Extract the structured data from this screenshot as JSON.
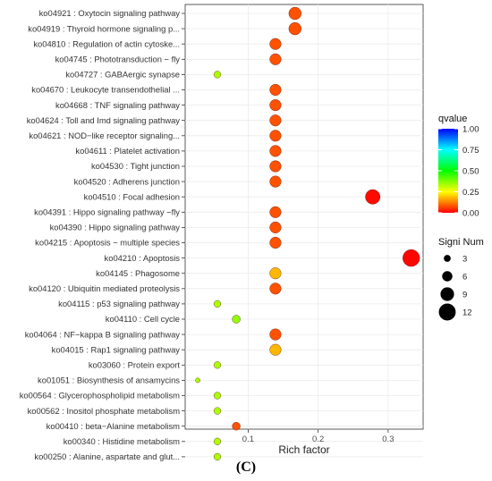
{
  "panel_label": "(C)",
  "chart_data": {
    "type": "scatter",
    "xlabel": "Rich factor",
    "ylabel": "",
    "xlim": [
      0.01,
      0.35
    ],
    "xticks": [
      0.1,
      0.2,
      0.3
    ],
    "tick_labels": [
      "0.1",
      "0.2",
      "0.3"
    ],
    "grid": true,
    "categories": [
      "ko04921 : Oxytocin signaling pathway",
      "ko04919 : Thyroid hormone signaling p...",
      "ko04810 : Regulation of actin cytoske...",
      "ko04745 : Phototransduction − fly",
      "ko04727 : GABAergic synapse",
      "ko04670 : Leukocyte transendothelial ...",
      "ko04668 : TNF signaling pathway",
      "ko04624 : Toll and Imd signaling pathway",
      "ko04621 : NOD−like receptor signaling...",
      "ko04611 : Platelet activation",
      "ko04530 : Tight junction",
      "ko04520 : Adherens junction",
      "ko04510 : Focal adhesion",
      "ko04391 : Hippo signaling pathway −fly",
      "ko04390 : Hippo signaling pathway",
      "ko04215 : Apoptosis − multiple species",
      "ko04210 : Apoptosis",
      "ko04145 : Phagosome",
      "ko04120 : Ubiquitin mediated proteolysis",
      "ko04115 : p53 signaling pathway",
      "ko04110 : Cell cycle",
      "ko04064 : NF−kappa B signaling pathway",
      "ko04015 : Rap1 signaling pathway",
      "ko03060 : Protein export",
      "ko01051 : Biosynthesis of ansamycins",
      "ko00564 : Glycerophospholipid metabolism",
      "ko00562 : Inositol phosphate metabolism",
      "ko00410 : beta−Alanine metabolism",
      "ko00340 : Histidine metabolism",
      "ko00250 : Alanine, aspartate and glut..."
    ],
    "points": [
      {
        "x": 0.167,
        "num": 8,
        "q": 0.08
      },
      {
        "x": 0.167,
        "num": 8,
        "q": 0.08
      },
      {
        "x": 0.139,
        "num": 7,
        "q": 0.08
      },
      {
        "x": 0.139,
        "num": 7,
        "q": 0.08
      },
      {
        "x": 0.056,
        "num": 3,
        "q": 0.33
      },
      {
        "x": 0.139,
        "num": 7,
        "q": 0.08
      },
      {
        "x": 0.139,
        "num": 7,
        "q": 0.08
      },
      {
        "x": 0.139,
        "num": 7,
        "q": 0.08
      },
      {
        "x": 0.139,
        "num": 7,
        "q": 0.08
      },
      {
        "x": 0.139,
        "num": 7,
        "q": 0.08
      },
      {
        "x": 0.139,
        "num": 7,
        "q": 0.08
      },
      {
        "x": 0.139,
        "num": 7,
        "q": 0.08
      },
      {
        "x": 0.278,
        "num": 10,
        "q": 0.01
      },
      {
        "x": 0.139,
        "num": 7,
        "q": 0.08
      },
      {
        "x": 0.139,
        "num": 7,
        "q": 0.08
      },
      {
        "x": 0.139,
        "num": 7,
        "q": 0.08
      },
      {
        "x": 0.333,
        "num": 12,
        "q": 0.005
      },
      {
        "x": 0.139,
        "num": 7,
        "q": 0.18
      },
      {
        "x": 0.139,
        "num": 7,
        "q": 0.08
      },
      {
        "x": 0.056,
        "num": 3,
        "q": 0.33
      },
      {
        "x": 0.083,
        "num": 4,
        "q": 0.36
      },
      {
        "x": 0.139,
        "num": 7,
        "q": 0.08
      },
      {
        "x": 0.139,
        "num": 7,
        "q": 0.18
      },
      {
        "x": 0.056,
        "num": 3,
        "q": 0.33
      },
      {
        "x": 0.028,
        "num": 1,
        "q": 0.33
      },
      {
        "x": 0.056,
        "num": 3,
        "q": 0.33
      },
      {
        "x": 0.056,
        "num": 3,
        "q": 0.33
      },
      {
        "x": 0.083,
        "num": 4,
        "q": 0.08
      },
      {
        "x": 0.056,
        "num": 3,
        "q": 0.33
      },
      {
        "x": 0.056,
        "num": 3,
        "q": 0.33
      }
    ],
    "color_legend": {
      "title": "qvalue",
      "ticks": [
        1.0,
        0.75,
        0.5,
        0.25,
        0.0
      ],
      "tick_labels": [
        "1.00",
        "0.75",
        "0.50",
        "0.25",
        "0.00"
      ],
      "colors": [
        "#ff0000",
        "#ffff00",
        "#00ff00",
        "#00ffff",
        "#0000ff"
      ],
      "placement": "right"
    },
    "size_legend": {
      "title": "Signi Num",
      "values": [
        3,
        6,
        9,
        12
      ],
      "tick_labels": [
        "3",
        "6",
        "9",
        "12"
      ],
      "placement": "right"
    }
  }
}
